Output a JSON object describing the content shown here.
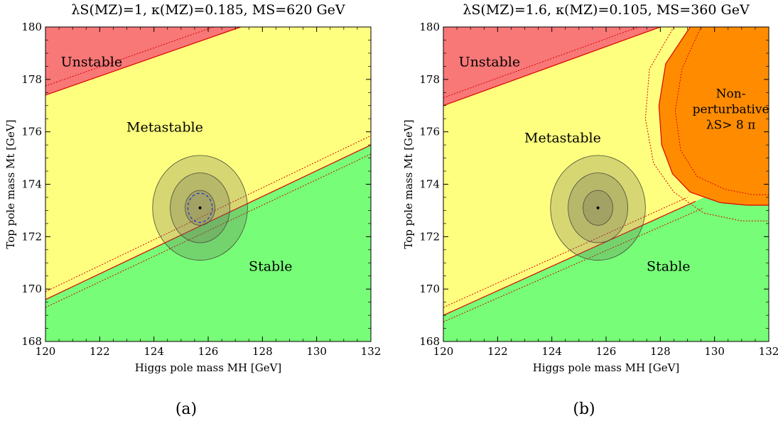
{
  "chart_data": [
    {
      "type": "area",
      "panel": "(a)",
      "title": "λS(MZ)=1, κ(MZ)=0.185, MS=620 GeV",
      "xlabel": "Higgs pole mass MH [GeV]",
      "ylabel": "Top pole mass Mt [GeV]",
      "xlim": [
        120,
        132
      ],
      "ylim": [
        168,
        180
      ],
      "xticks": [
        "120",
        "122",
        "124",
        "126",
        "128",
        "130",
        "132"
      ],
      "yticks": [
        "168",
        "170",
        "172",
        "174",
        "176",
        "178",
        "180"
      ],
      "colors": {
        "unstable": "#f87777",
        "metastable": "#ffff7f",
        "stable": "#77fd77",
        "boundary": "#dd0000",
        "ellipse": "#6b6b55"
      },
      "regions": [
        {
          "name": "Unstable",
          "label_pos": [
            121.7,
            178.5
          ]
        },
        {
          "name": "Metastable",
          "label_pos": [
            124.4,
            176.0
          ]
        },
        {
          "name": "Stable",
          "label_pos": [
            128.3,
            170.7
          ]
        }
      ],
      "boundaries": [
        {
          "name": "unstable-metastable",
          "style": "solid",
          "points": [
            [
              120,
              177.4
            ],
            [
              127.2,
              180
            ]
          ]
        },
        {
          "name": "unstable-metastable-dotted",
          "style": "dotted",
          "points": [
            [
              120,
              177.75
            ],
            [
              126.2,
              180
            ]
          ]
        },
        {
          "name": "metastable-stable",
          "style": "solid",
          "points": [
            [
              120,
              169.6
            ],
            [
              132,
              175.5
            ]
          ]
        },
        {
          "name": "metastable-stable-dotted",
          "style": "dotted",
          "points": [
            [
              120,
              169.9
            ],
            [
              132,
              175.85
            ]
          ]
        },
        {
          "name": "stable-dotted-lower",
          "style": "dotted",
          "points": [
            [
              120,
              169.3
            ],
            [
              132,
              175.15
            ]
          ]
        }
      ],
      "measurement": {
        "center": [
          125.7,
          173.1
        ],
        "ellipses": [
          {
            "sigma": 3,
            "rx": 1.75,
            "ry": 5.4
          },
          {
            "sigma": 2,
            "rx": 1.1,
            "ry": 3.6
          },
          {
            "sigma": 1,
            "rx": 0.55,
            "ry": 1.8
          }
        ],
        "dashed_ellipse": {
          "rx": 0.45,
          "ry": 1.5
        }
      }
    },
    {
      "type": "area",
      "panel": "(b)",
      "title": "λS(MZ)=1.6, κ(MZ)=0.105, MS=360 GeV",
      "xlabel": "Higgs pole mass MH [GeV]",
      "ylabel": "Top pole mass Mt [GeV]",
      "xlim": [
        120,
        132
      ],
      "ylim": [
        168,
        180
      ],
      "xticks": [
        "120",
        "122",
        "124",
        "126",
        "128",
        "130",
        "132"
      ],
      "yticks": [
        "168",
        "170",
        "172",
        "174",
        "176",
        "178",
        "180"
      ],
      "colors": {
        "unstable": "#f87777",
        "metastable": "#ffff7f",
        "stable": "#77fd77",
        "nonperturbative": "#ff8c00",
        "boundary": "#dd0000",
        "ellipse": "#6b6b55"
      },
      "regions": [
        {
          "name": "Unstable",
          "label_pos": [
            121.7,
            178.5
          ]
        },
        {
          "name": "Metastable",
          "label_pos": [
            124.4,
            175.6
          ]
        },
        {
          "name": "Stable",
          "label_pos": [
            128.3,
            170.7
          ]
        },
        {
          "name": "Non-perturbative",
          "lines": [
            "Non-",
            "perturbative",
            "λS> 8 π"
          ],
          "label_pos": [
            130.6,
            177.3
          ]
        }
      ],
      "boundaries": [
        {
          "name": "unstable-metastable",
          "style": "solid",
          "points": [
            [
              120,
              177.0
            ],
            [
              128.0,
              180
            ]
          ]
        },
        {
          "name": "unstable-metastable-dotted",
          "style": "dotted",
          "points": [
            [
              120,
              177.3
            ],
            [
              127.2,
              180
            ]
          ]
        },
        {
          "name": "metastable-stable",
          "style": "solid",
          "points": [
            [
              120,
              169.0
            ],
            [
              129.3,
              173.35
            ]
          ]
        },
        {
          "name": "metastable-stable-dotted",
          "style": "dotted",
          "points": [
            [
              120,
              169.3
            ],
            [
              129.0,
              173.5
            ]
          ]
        },
        {
          "name": "stable-dotted-lower",
          "style": "dotted",
          "points": [
            [
              120,
              168.75
            ],
            [
              129.6,
              173.1
            ]
          ]
        }
      ],
      "nonperturbative_boundary": [
        [
          129.1,
          180
        ],
        [
          128.2,
          178.6
        ],
        [
          127.95,
          177.0
        ],
        [
          128.05,
          175.5
        ],
        [
          128.45,
          174.4
        ],
        [
          129.1,
          173.7
        ],
        [
          130.2,
          173.3
        ],
        [
          131.2,
          173.2
        ],
        [
          132,
          173.2
        ]
      ],
      "nonperturbative_dotted_outer": [
        [
          128.5,
          180
        ],
        [
          127.6,
          178.4
        ],
        [
          127.45,
          176.5
        ],
        [
          127.75,
          174.8
        ],
        [
          128.5,
          173.7
        ],
        [
          129.6,
          172.9
        ],
        [
          131.0,
          172.6
        ],
        [
          132,
          172.6
        ]
      ],
      "nonperturbative_dotted_inner": [
        [
          129.5,
          180
        ],
        [
          128.8,
          178.4
        ],
        [
          128.55,
          176.8
        ],
        [
          128.75,
          175.3
        ],
        [
          129.35,
          174.3
        ],
        [
          130.4,
          173.8
        ],
        [
          131.4,
          173.6
        ],
        [
          132,
          173.6
        ]
      ],
      "measurement": {
        "center": [
          125.7,
          173.1
        ],
        "ellipses": [
          {
            "sigma": 3,
            "rx": 1.75,
            "ry": 5.4
          },
          {
            "sigma": 2,
            "rx": 1.1,
            "ry": 3.6
          },
          {
            "sigma": 1,
            "rx": 0.55,
            "ry": 1.8
          }
        ]
      }
    }
  ]
}
